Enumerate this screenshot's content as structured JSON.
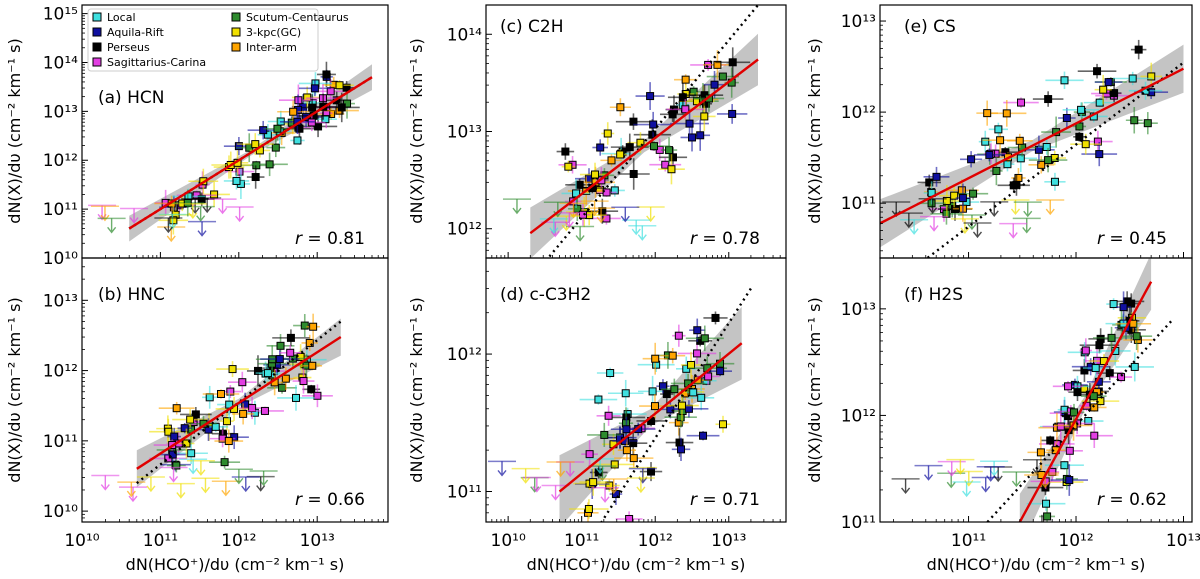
{
  "figure": {
    "x_label_html": "dN(HCO⁺)/dυ (cm⁻² km⁻¹ s)",
    "y_label_html": "dN(X)/dυ (cm⁻² km⁻¹ s)"
  },
  "legend": [
    {
      "name": "Local",
      "color": "#3fe0e0"
    },
    {
      "name": "Aquila-Rift",
      "color": "#1010a0"
    },
    {
      "name": "Perseus",
      "color": "#000000"
    },
    {
      "name": "Sagittarius-Carina",
      "color": "#e23ee2"
    },
    {
      "name": "Scutum-Centaurus",
      "color": "#2e8b2e"
    },
    {
      "name": "3-kpc(GC)",
      "color": "#f0e000"
    },
    {
      "name": "Inter-arm",
      "color": "#ffa500"
    }
  ],
  "colors": {
    "fit": "#e00000",
    "band": "#b0b0b0",
    "ref": "#000000",
    "Local": "#3fe0e0",
    "Aquila-Rift": "#1010a0",
    "Perseus": "#000000",
    "Sagittarius-Carina": "#e23ee2",
    "Scutum-Centaurus": "#2e8b2e",
    "3-kpc(GC)": "#f0e000",
    "Inter-arm": "#ffa500"
  },
  "chart_data": [
    {
      "type": "scatter",
      "panel": "a",
      "title": "(a) HCN",
      "molecule": "HCN",
      "r": "0.81",
      "xlim": [
        10000000000.0,
        80000000000000.0
      ],
      "ylim": [
        10000000000.0,
        1500000000000000.0
      ],
      "xticks": [
        10000000000.0,
        100000000000.0,
        1000000000000.0,
        10000000000000.0
      ],
      "yticks": [
        10000000000.0,
        100000000000.0,
        1000000000000.0,
        10000000000000.0,
        100000000000000.0,
        1000000000000000.0
      ],
      "ytick_labels": [
        "10^10",
        "10^11",
        "10^12",
        "10^13",
        "10^14",
        "10^15"
      ],
      "fit": {
        "x": [
          40000000000.0,
          50000000000000.0
        ],
        "y": [
          40000000000.0,
          50000000000000.0
        ]
      },
      "reference": {
        "x": [
          40000000000.0,
          50000000000000.0
        ],
        "y": [
          40000000000.0,
          50000000000000.0
        ]
      }
    },
    {
      "type": "scatter",
      "panel": "b",
      "title": "(b) HNC",
      "molecule": "HNC",
      "r": "0.66",
      "xlim": [
        10000000000.0,
        80000000000000.0
      ],
      "ylim": [
        7000000000.0,
        40000000000000.0
      ],
      "xticks": [
        10000000000.0,
        100000000000.0,
        1000000000000.0,
        10000000000000.0
      ],
      "yticks": [
        10000000000.0,
        100000000000.0,
        1000000000000.0,
        10000000000000.0
      ],
      "xtick_labels": [
        "10^10",
        "10^11",
        "10^12",
        "10^13"
      ],
      "ytick_labels": [
        "10^10",
        "10^11",
        "10^12",
        "10^13"
      ],
      "fit": {
        "x": [
          50000000000.0,
          20000000000000.0
        ],
        "y": [
          40000000000.0,
          3000000000000.0
        ]
      },
      "reference": {
        "x": [
          50000000000.0,
          20000000000000.0
        ],
        "y": [
          25000000000.0,
          5000000000000.0
        ]
      }
    },
    {
      "type": "scatter",
      "panel": "c",
      "title": "(c) C2H",
      "molecule": "C2H",
      "r": "0.78",
      "xlim": [
        5000000000.0,
        60000000000000.0
      ],
      "ylim": [
        500000000000.0,
        200000000000000.0
      ],
      "xticks": [
        10000000000.0,
        100000000000.0,
        1000000000000.0,
        10000000000000.0
      ],
      "yticks": [
        1000000000000.0,
        10000000000000.0,
        100000000000000.0
      ],
      "ytick_labels": [
        "10^12",
        "10^13",
        "10^14"
      ],
      "fit": {
        "x": [
          20000000000.0,
          25000000000000.0
        ],
        "y": [
          900000000000.0,
          55000000000000.0
        ]
      },
      "reference": {
        "x": [
          20000000000.0,
          25000000000000.0
        ],
        "y": [
          300000000000.0,
          200000000000000.0
        ]
      }
    },
    {
      "type": "scatter",
      "panel": "d",
      "title": "(d) c-C3H2",
      "molecule": "c-C3H2",
      "r": "0.71",
      "xlim": [
        5000000000.0,
        60000000000000.0
      ],
      "ylim": [
        60000000000.0,
        5000000000000.0
      ],
      "xticks": [
        10000000000.0,
        100000000000.0,
        1000000000000.0,
        10000000000000.0
      ],
      "yticks": [
        100000000000.0,
        1000000000000.0
      ],
      "xtick_labels": [
        "10^10",
        "10^11",
        "10^12",
        "10^13"
      ],
      "ytick_labels": [
        "10^11",
        "10^12"
      ],
      "fit": {
        "x": [
          50000000000.0,
          15000000000000.0
        ],
        "y": [
          100000000000.0,
          1200000000000.0
        ]
      },
      "reference": {
        "x": [
          150000000000.0,
          20000000000000.0
        ],
        "y": [
          50000000000.0,
          3000000000000.0
        ]
      }
    },
    {
      "type": "scatter",
      "panel": "e",
      "title": "(e) CS",
      "molecule": "CS",
      "r": "0.45",
      "xlim": [
        15000000000.0,
        12000000000000.0
      ],
      "ylim": [
        25000000000.0,
        15000000000000.0
      ],
      "xticks": [
        100000000000.0,
        1000000000000.0,
        10000000000000.0
      ],
      "yticks": [
        100000000000.0,
        1000000000000.0,
        10000000000000.0
      ],
      "ytick_labels": [
        "10^11",
        "10^12",
        "10^13"
      ],
      "fit": {
        "x": [
          15000000000.0,
          10000000000000.0
        ],
        "y": [
          60000000000.0,
          3000000000000.0
        ]
      },
      "reference": {
        "x": [
          15000000000.0,
          10000000000000.0
        ],
        "y": [
          10000000000.0,
          3500000000000.0
        ]
      }
    },
    {
      "type": "scatter",
      "panel": "f",
      "title": "(f) H2S",
      "molecule": "H2S",
      "r": "0.62",
      "xlim": [
        15000000000.0,
        12000000000000.0
      ],
      "ylim": [
        100000000000.0,
        30000000000000.0
      ],
      "xticks": [
        100000000000.0,
        1000000000000.0,
        10000000000000.0
      ],
      "yticks": [
        100000000000.0,
        1000000000000.0,
        10000000000000.0
      ],
      "xtick_labels": [
        "10^11",
        "10^12",
        "10^13"
      ],
      "ytick_labels": [
        "10^11",
        "10^12",
        "10^13"
      ],
      "fit": {
        "x": [
          300000000000.0,
          5000000000000.0
        ],
        "y": [
          100000000000.0,
          18000000000000.0
        ]
      },
      "reference": {
        "x": [
          150000000000.0,
          8000000000000.0
        ],
        "y": [
          100000000000.0,
          8000000000000.0
        ]
      }
    }
  ]
}
